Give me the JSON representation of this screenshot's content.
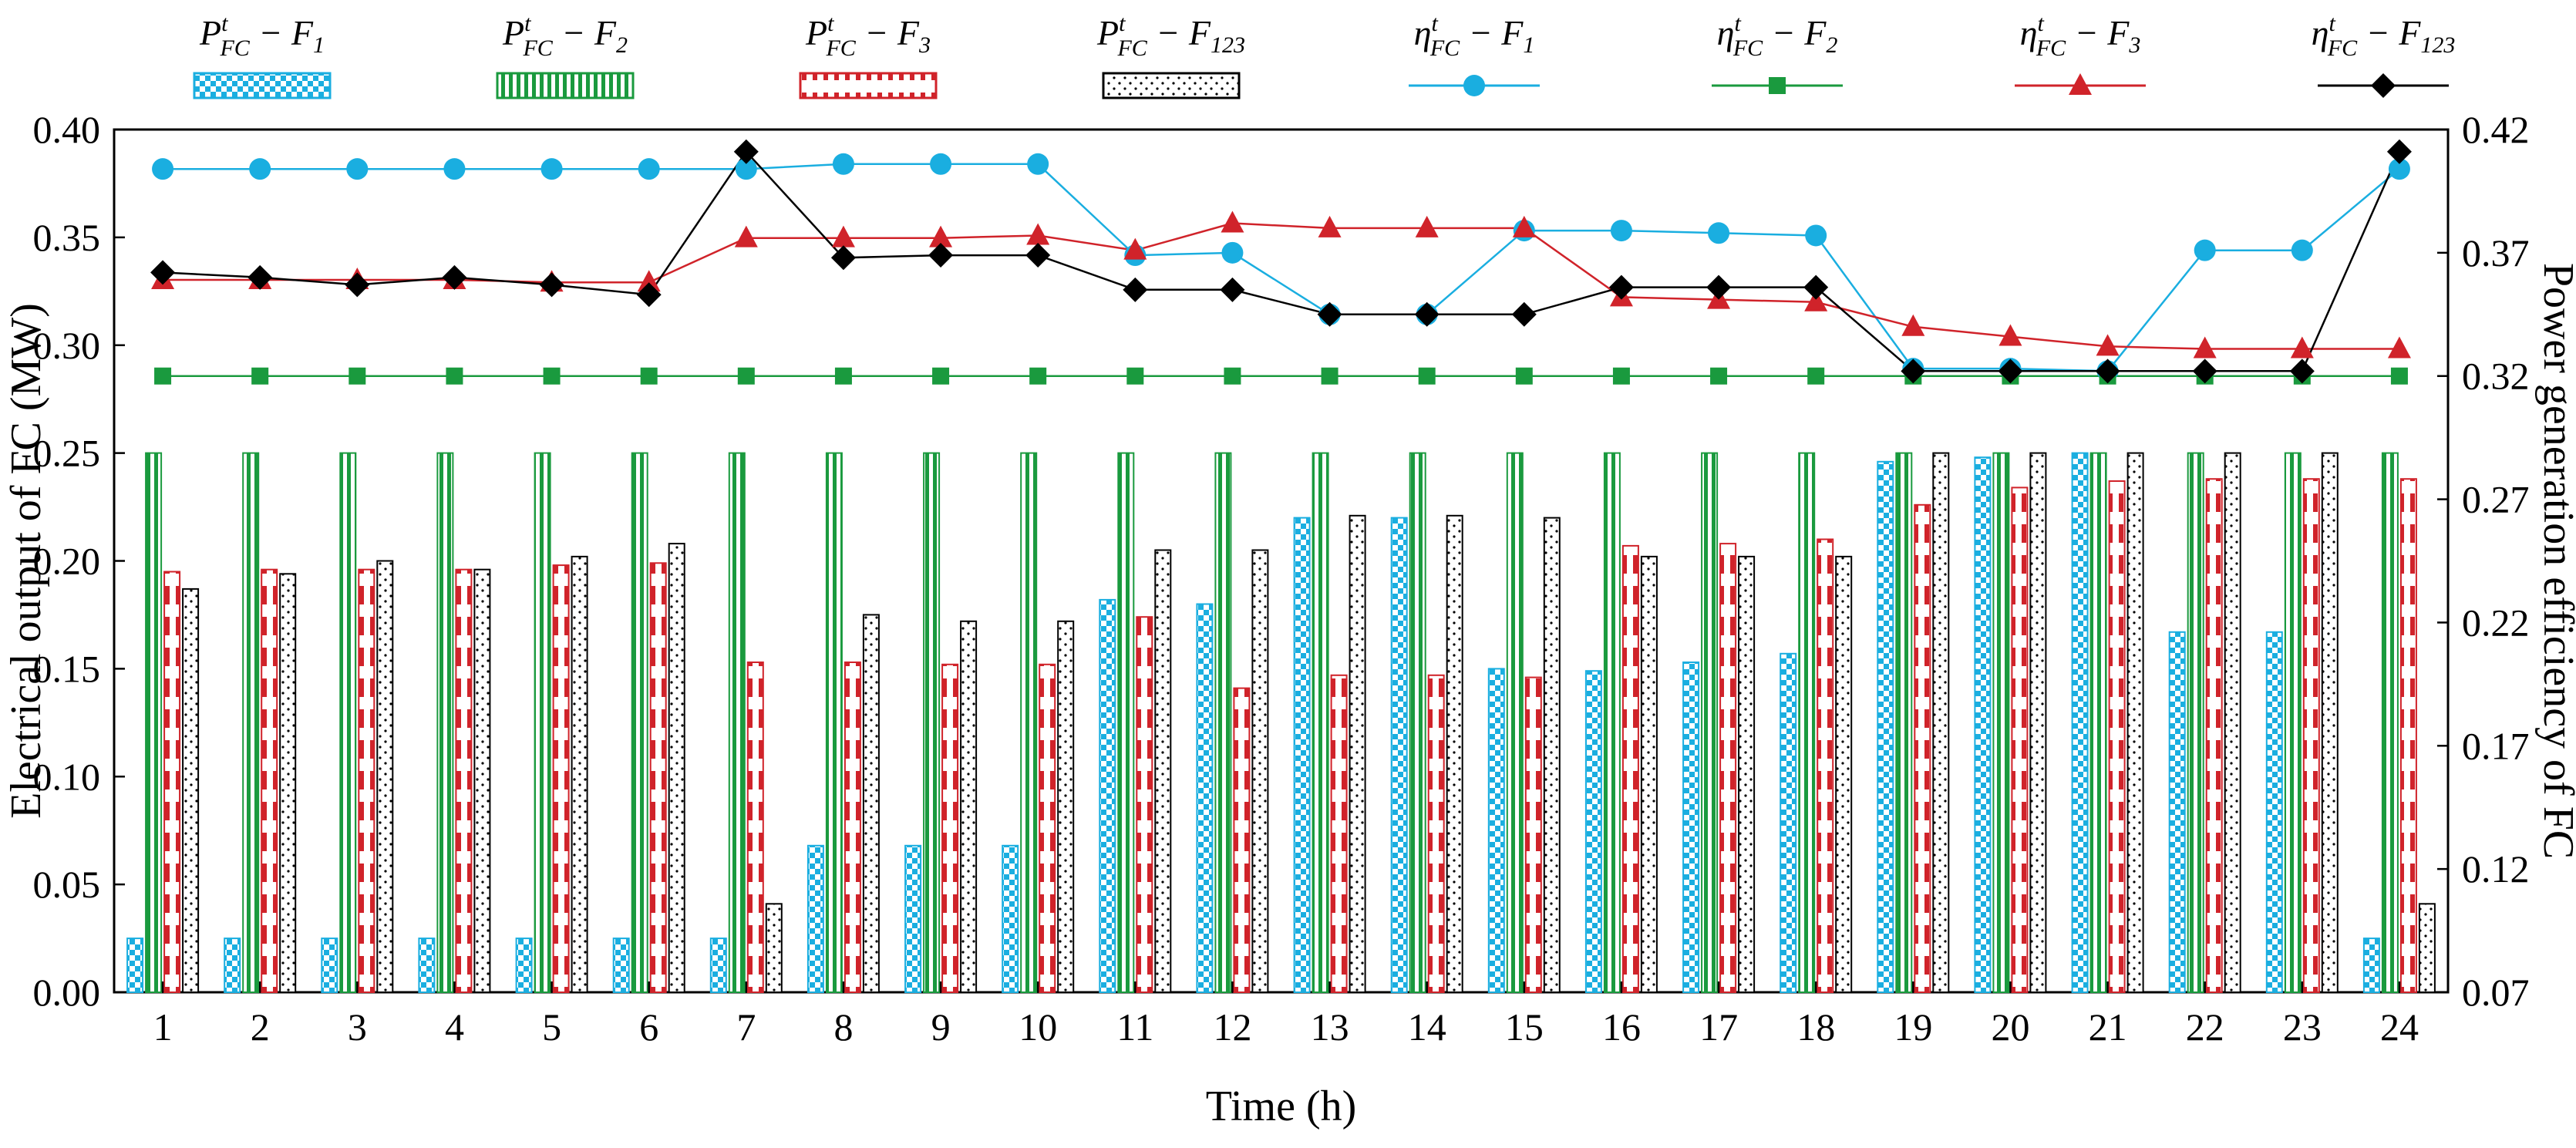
{
  "chart_data": {
    "type": "bar+line",
    "xlabel": "Time (h)",
    "ylabel_left": "Electrical  output of FC (MW)",
    "ylabel_right": "Power generation efficiency  of FC",
    "categories": [
      1,
      2,
      3,
      4,
      5,
      6,
      7,
      8,
      9,
      10,
      11,
      12,
      13,
      14,
      15,
      16,
      17,
      18,
      19,
      20,
      21,
      22,
      23,
      24
    ],
    "x_tick_labels": [
      "1",
      "2",
      "3",
      "4",
      "5",
      "6",
      "7",
      "8",
      "9",
      "10",
      "11",
      "12",
      "13",
      "14",
      "15",
      "16",
      "17",
      "18",
      "19",
      "20",
      "21",
      "22",
      "23",
      "24"
    ],
    "ylim_left": [
      0,
      0.4
    ],
    "ylim_right": [
      0.07,
      0.42
    ],
    "y_ticks_left": [
      "0.00",
      "0.05",
      "0.10",
      "0.15",
      "0.20",
      "0.25",
      "0.30",
      "0.35",
      "0.40"
    ],
    "y_ticks_right": [
      "0.07",
      "0.12",
      "0.17",
      "0.22",
      "0.27",
      "0.32",
      "0.37",
      "0.42"
    ],
    "bar_series": [
      {
        "key": "PF1",
        "legend_main": "P",
        "legend_sup": "t",
        "legend_sub": "FC",
        "legend_rest": " − F",
        "legend_rest_sub": "1",
        "color": "#1aaee0",
        "values": [
          0.025,
          0.025,
          0.025,
          0.025,
          0.025,
          0.025,
          0.025,
          0.068,
          0.068,
          0.068,
          0.182,
          0.18,
          0.22,
          0.22,
          0.15,
          0.149,
          0.153,
          0.157,
          0.246,
          0.248,
          0.25,
          0.167,
          0.167,
          0.025
        ]
      },
      {
        "key": "PF2",
        "legend_main": "P",
        "legend_sup": "t",
        "legend_sub": "FC",
        "legend_rest": " − F",
        "legend_rest_sub": "2",
        "color": "#1a9a3e",
        "values": [
          0.25,
          0.25,
          0.25,
          0.25,
          0.25,
          0.25,
          0.25,
          0.25,
          0.25,
          0.25,
          0.25,
          0.25,
          0.25,
          0.25,
          0.25,
          0.25,
          0.25,
          0.25,
          0.25,
          0.25,
          0.25,
          0.25,
          0.25,
          0.25
        ]
      },
      {
        "key": "PF3",
        "legend_main": "P",
        "legend_sup": "t",
        "legend_sub": "FC",
        "legend_rest": " − F",
        "legend_rest_sub": "3",
        "color": "#d0232a",
        "values": [
          0.195,
          0.196,
          0.196,
          0.196,
          0.198,
          0.199,
          0.153,
          0.153,
          0.152,
          0.152,
          0.174,
          0.141,
          0.147,
          0.147,
          0.146,
          0.207,
          0.208,
          0.21,
          0.226,
          0.234,
          0.237,
          0.238,
          0.238,
          0.238
        ]
      },
      {
        "key": "PF123",
        "legend_main": "P",
        "legend_sup": "t",
        "legend_sub": "FC",
        "legend_rest": " − F",
        "legend_rest_sub": "123",
        "color": "#000000",
        "values": [
          0.187,
          0.194,
          0.2,
          0.196,
          0.202,
          0.208,
          0.041,
          0.175,
          0.172,
          0.172,
          0.205,
          0.205,
          0.221,
          0.221,
          0.22,
          0.202,
          0.202,
          0.202,
          0.25,
          0.25,
          0.25,
          0.25,
          0.25,
          0.041
        ]
      }
    ],
    "line_series": [
      {
        "key": "EF1",
        "legend_main": "η",
        "legend_sup": "t",
        "legend_sub": "FC",
        "legend_rest": " − F",
        "legend_rest_sub": "1",
        "color": "#1aaee0",
        "marker": "circle",
        "values": [
          0.404,
          0.404,
          0.404,
          0.404,
          0.404,
          0.404,
          0.404,
          0.406,
          0.406,
          0.406,
          0.369,
          0.37,
          0.345,
          0.345,
          0.379,
          0.379,
          0.378,
          0.377,
          0.323,
          0.323,
          0.322,
          0.371,
          0.371,
          0.404
        ]
      },
      {
        "key": "EF2",
        "legend_main": "η",
        "legend_sup": "t",
        "legend_sub": "FC",
        "legend_rest": " − F",
        "legend_rest_sub": "2",
        "color": "#1a9a3e",
        "marker": "square",
        "values": [
          0.32,
          0.32,
          0.32,
          0.32,
          0.32,
          0.32,
          0.32,
          0.32,
          0.32,
          0.32,
          0.32,
          0.32,
          0.32,
          0.32,
          0.32,
          0.32,
          0.32,
          0.32,
          0.32,
          0.32,
          0.32,
          0.32,
          0.32,
          0.32
        ]
      },
      {
        "key": "EF3",
        "legend_main": "η",
        "legend_sup": "t",
        "legend_sub": "FC",
        "legend_rest": " − F",
        "legend_rest_sub": "3",
        "color": "#d0232a",
        "marker": "triangle",
        "values": [
          0.359,
          0.359,
          0.359,
          0.359,
          0.358,
          0.358,
          0.376,
          0.376,
          0.376,
          0.377,
          0.371,
          0.382,
          0.38,
          0.38,
          0.38,
          0.352,
          0.351,
          0.35,
          0.34,
          0.336,
          0.332,
          0.331,
          0.331,
          0.331
        ]
      },
      {
        "key": "EF123",
        "legend_main": "η",
        "legend_sup": "t",
        "legend_sub": "FC",
        "legend_rest": " − F",
        "legend_rest_sub": "123",
        "color": "#000000",
        "marker": "diamond",
        "values": [
          0.362,
          0.36,
          0.357,
          0.36,
          0.357,
          0.353,
          0.411,
          0.368,
          0.369,
          0.369,
          0.355,
          0.355,
          0.345,
          0.345,
          0.345,
          0.356,
          0.356,
          0.356,
          0.322,
          0.322,
          0.322,
          0.322,
          0.322,
          0.411
        ]
      }
    ]
  }
}
